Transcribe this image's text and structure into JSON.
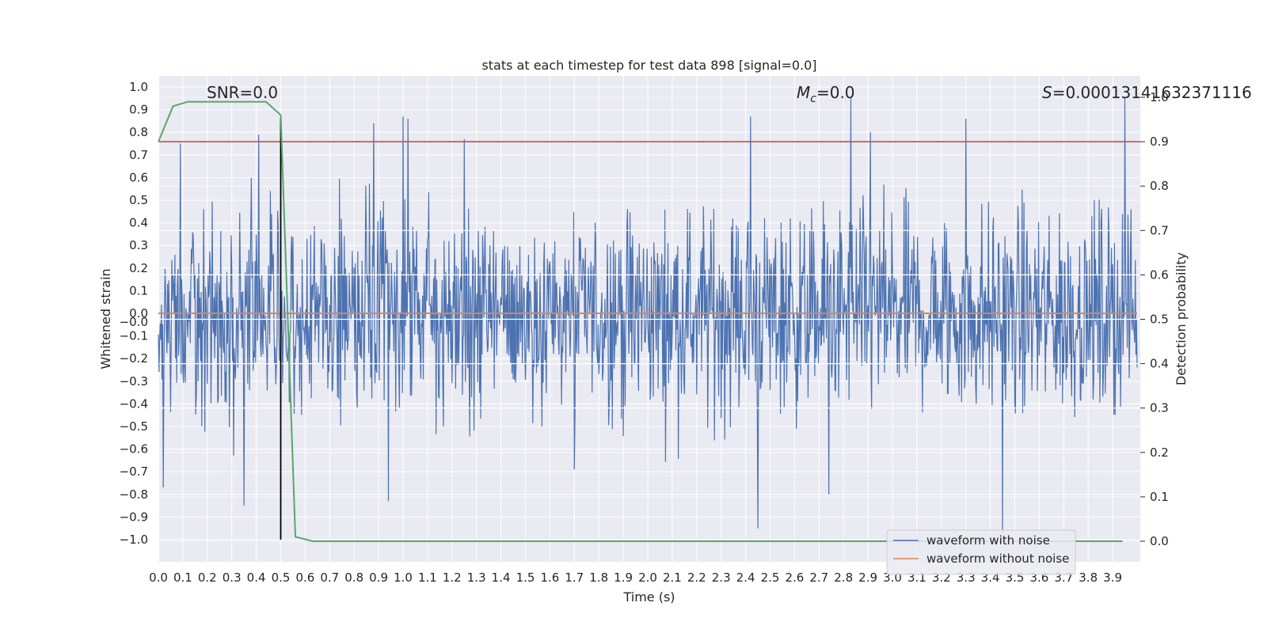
{
  "chart_data": {
    "type": "line",
    "title": "stats at each timestep for test data 898 [signal=0.0]",
    "xlabel": "Time (s)",
    "ylabel": "Whitened strain",
    "y2label": "Detection probability",
    "xlim": [
      0.0,
      4.0
    ],
    "ylim": [
      -1.1,
      1.1
    ],
    "y2lim": [
      -0.05,
      1.05
    ],
    "x_ticks": [
      "0.0",
      "0.1",
      "0.2",
      "0.3",
      "0.4",
      "0.5",
      "0.6",
      "0.7",
      "0.8",
      "0.9",
      "1.0",
      "1.1",
      "1.2",
      "1.3",
      "1.4",
      "1.5",
      "1.6",
      "1.7",
      "1.8",
      "1.9",
      "2.0",
      "2.1",
      "2.2",
      "2.3",
      "2.4",
      "2.5",
      "2.6",
      "2.7",
      "2.8",
      "2.9",
      "3.0",
      "3.1",
      "3.2",
      "3.3",
      "3.4",
      "3.5",
      "3.6",
      "3.7",
      "3.8",
      "3.9"
    ],
    "y_ticks": [
      "1.0",
      "0.9",
      "0.8",
      "0.7",
      "0.6",
      "0.5",
      "0.4",
      "0.3",
      "0.2",
      "0.1",
      "0.0",
      "−0.0",
      "−0.1",
      "−0.2",
      "−0.3",
      "−0.4",
      "−0.5",
      "−0.6",
      "−0.7",
      "−0.8",
      "−0.9",
      "−1.0"
    ],
    "y_tick_values": [
      1.0,
      0.9,
      0.8,
      0.7,
      0.6,
      0.5,
      0.4,
      0.3,
      0.2,
      0.1,
      0.0,
      0.0,
      -0.1,
      -0.2,
      -0.3,
      -0.4,
      -0.5,
      -0.6,
      -0.7,
      -0.8,
      -0.9,
      -1.0
    ],
    "y2_ticks": [
      "0.0",
      "0.1",
      "0.2",
      "0.3",
      "0.4",
      "0.5",
      "0.6",
      "0.7",
      "0.8",
      "0.9",
      "1.0"
    ],
    "grid": true,
    "legend_placement": "lower-right",
    "legend": [
      "waveform with noise",
      "waveform without noise"
    ],
    "colors": {
      "noise": "#4c72b0",
      "clean": "#dd8452",
      "probability": "#55a868",
      "threshold": "#c44e52",
      "marker": "#000000",
      "background": "#eaeaf2"
    },
    "annotations": {
      "snr": "SNR=0.0",
      "mc_symbol": "M",
      "mc_sub": "c",
      "mc_value": "=0.0",
      "s_symbol": "S",
      "s_value": "=0.00013141632371116"
    },
    "noise_spikes": [
      {
        "x": 0.02,
        "y": -0.77
      },
      {
        "x": 0.09,
        "y": 0.75
      },
      {
        "x": 0.35,
        "y": -0.85
      },
      {
        "x": 0.41,
        "y": 0.79
      },
      {
        "x": 0.88,
        "y": 0.84
      },
      {
        "x": 0.94,
        "y": -0.83
      },
      {
        "x": 1.0,
        "y": 0.87
      },
      {
        "x": 1.02,
        "y": 0.86
      },
      {
        "x": 1.25,
        "y": 0.77
      },
      {
        "x": 2.42,
        "y": 0.87
      },
      {
        "x": 2.45,
        "y": -0.95
      },
      {
        "x": 2.83,
        "y": 0.95
      },
      {
        "x": 2.91,
        "y": 0.8
      },
      {
        "x": 3.3,
        "y": 0.86
      },
      {
        "x": 3.45,
        "y": -0.97
      },
      {
        "x": 3.95,
        "y": 0.95
      },
      {
        "x": 2.74,
        "y": -0.8
      },
      {
        "x": 1.7,
        "y": -0.69
      }
    ],
    "noise_amplitude": 0.32,
    "clean_series": {
      "x": [
        0.0,
        4.0
      ],
      "y": [
        0.0,
        0.0
      ]
    },
    "probability_series": {
      "x": [
        0.0,
        0.06,
        0.12,
        0.44,
        0.5,
        0.56,
        0.63,
        3.94
      ],
      "y": [
        0.9,
        0.98,
        0.99,
        0.99,
        0.96,
        0.01,
        0.0,
        0.0
      ]
    },
    "threshold": 0.9,
    "marker_x": 0.5,
    "marker_y_range": [
      -1.0,
      1.0
    ]
  }
}
